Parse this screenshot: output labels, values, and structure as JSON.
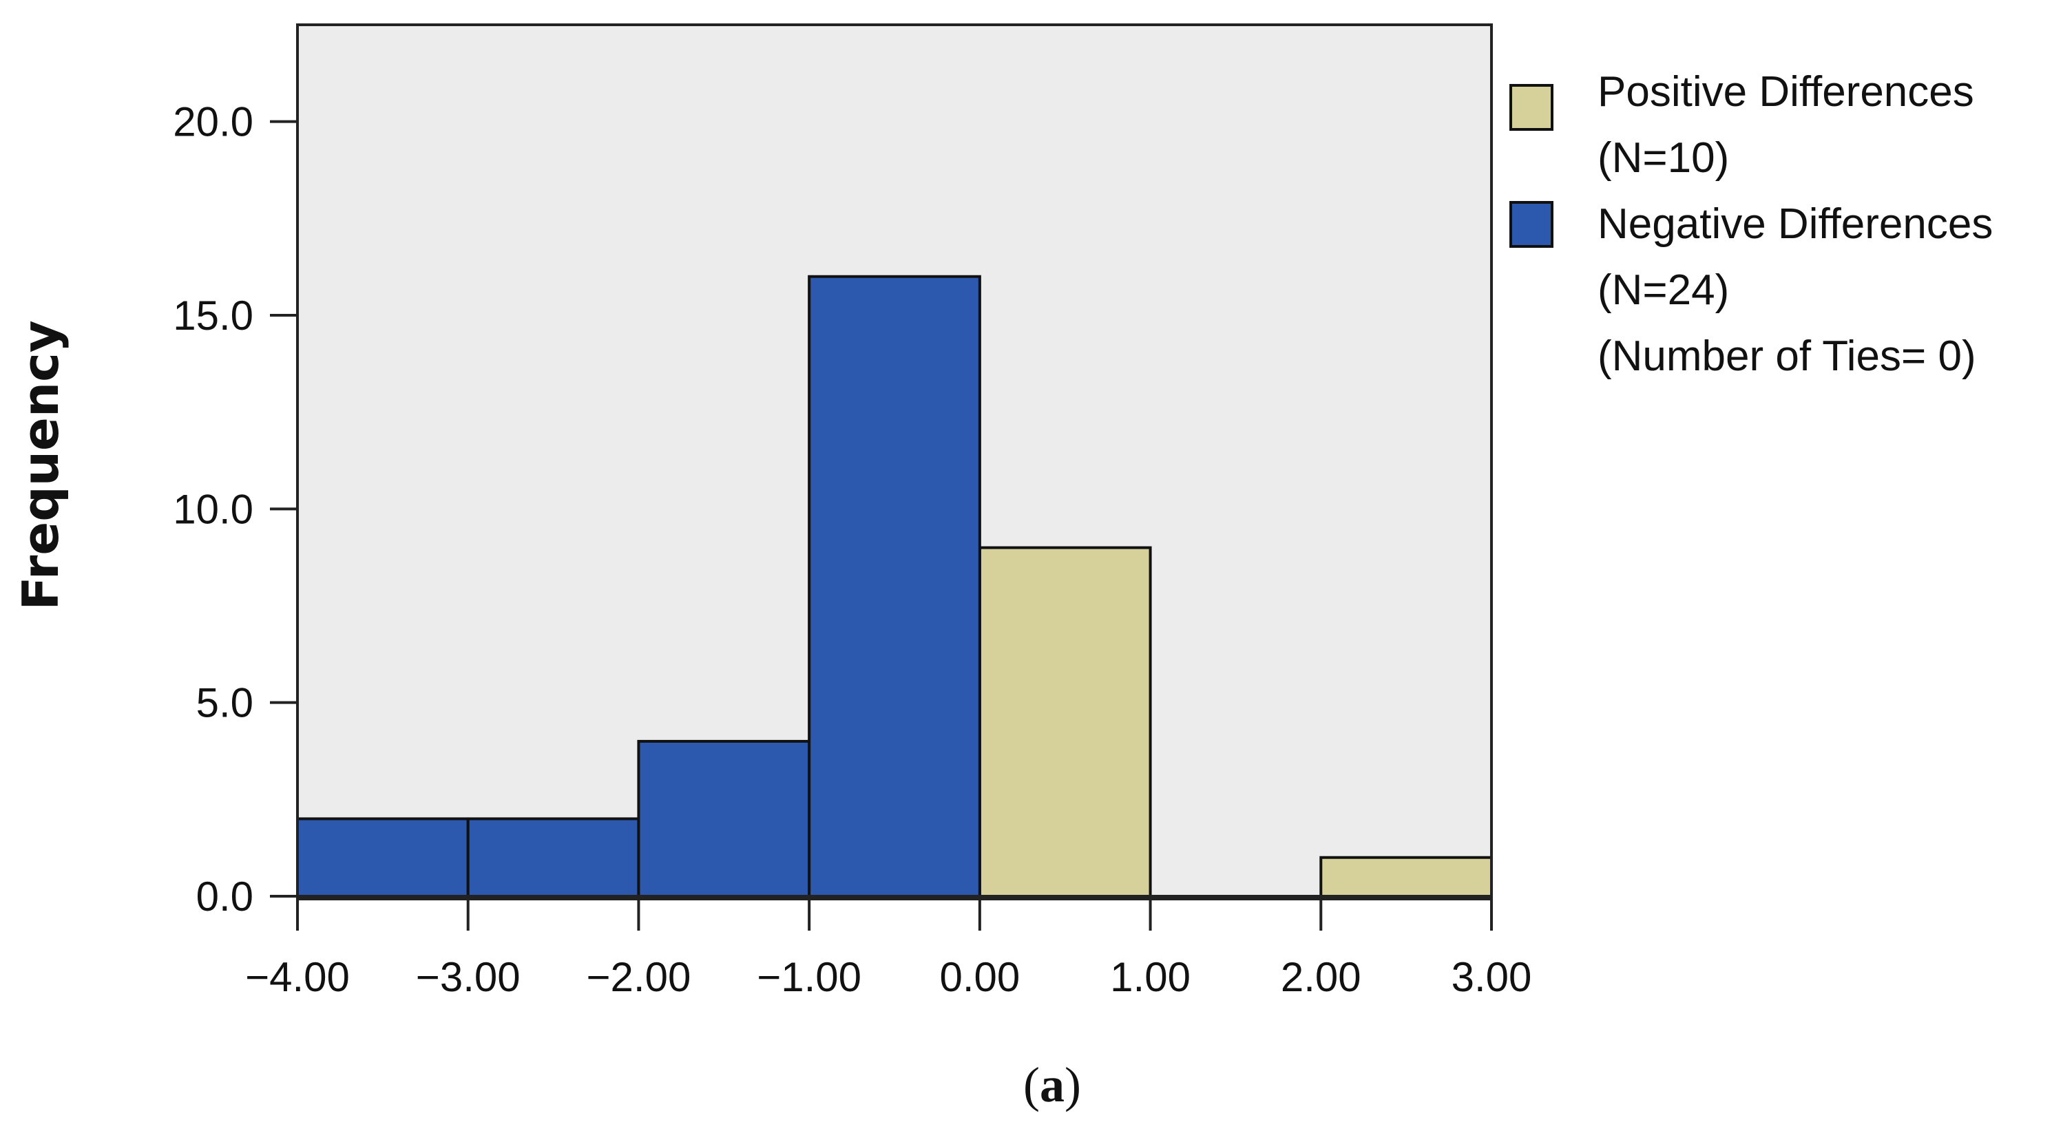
{
  "chart_data": {
    "type": "bar",
    "histogram": true,
    "ylabel": "Frequency",
    "xlabel": "",
    "caption_letter": "a",
    "xlim": [
      -4,
      3
    ],
    "ylim": [
      0,
      22.5
    ],
    "xticks": [
      -4,
      -3,
      -2,
      -1,
      0,
      1,
      2,
      3
    ],
    "xtick_labels": [
      "−4.00",
      "−3.00",
      "−2.00",
      "−1.00",
      "0.00",
      "1.00",
      "2.00",
      "3.00"
    ],
    "yticks": [
      0,
      5,
      10,
      15,
      20
    ],
    "ytick_labels": [
      "0.0",
      "5.0",
      "10.0",
      "15.0",
      "20.0"
    ],
    "grid": false,
    "legend_position": "right",
    "plot_background": "#ececec",
    "series": [
      {
        "name": "Positive Differences",
        "legend_lines": [
          "Positive Differences",
          "(N=10)"
        ],
        "color": "#d6d09a",
        "bins": [
          {
            "x0": 0,
            "x1": 1,
            "count": 9
          },
          {
            "x0": 2,
            "x1": 3,
            "count": 1
          }
        ]
      },
      {
        "name": "Negative Differences",
        "legend_lines": [
          "Negative Differences",
          "(N=24)"
        ],
        "color": "#2c58ae",
        "bins": [
          {
            "x0": -4,
            "x1": -3,
            "count": 2
          },
          {
            "x0": -3,
            "x1": -2,
            "count": 2
          },
          {
            "x0": -2,
            "x1": -1,
            "count": 4
          },
          {
            "x0": -1,
            "x1": 0,
            "count": 16
          }
        ]
      }
    ],
    "legend_note": "(Number of Ties= 0)"
  }
}
